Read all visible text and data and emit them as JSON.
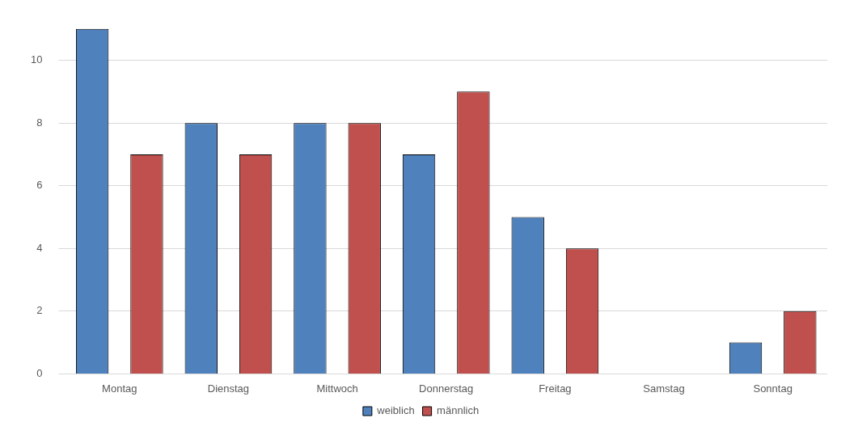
{
  "chart_data": {
    "type": "bar",
    "categories": [
      "Montag",
      "Dienstag",
      "Mittwoch",
      "Donnerstag",
      "Freitag",
      "Samstag",
      "Sonntag"
    ],
    "series": [
      {
        "name": "weiblich",
        "color": "#4f81bd",
        "values": [
          11,
          8,
          8,
          7,
          5,
          0,
          1
        ]
      },
      {
        "name": "männlich",
        "color": "#c0504d",
        "values": [
          7,
          7,
          8,
          9,
          4,
          0,
          2
        ]
      }
    ],
    "ylim": [
      0,
      11
    ],
    "yticks": [
      0,
      2,
      4,
      6,
      8,
      10
    ],
    "grid": "y",
    "legend": "bottom"
  }
}
